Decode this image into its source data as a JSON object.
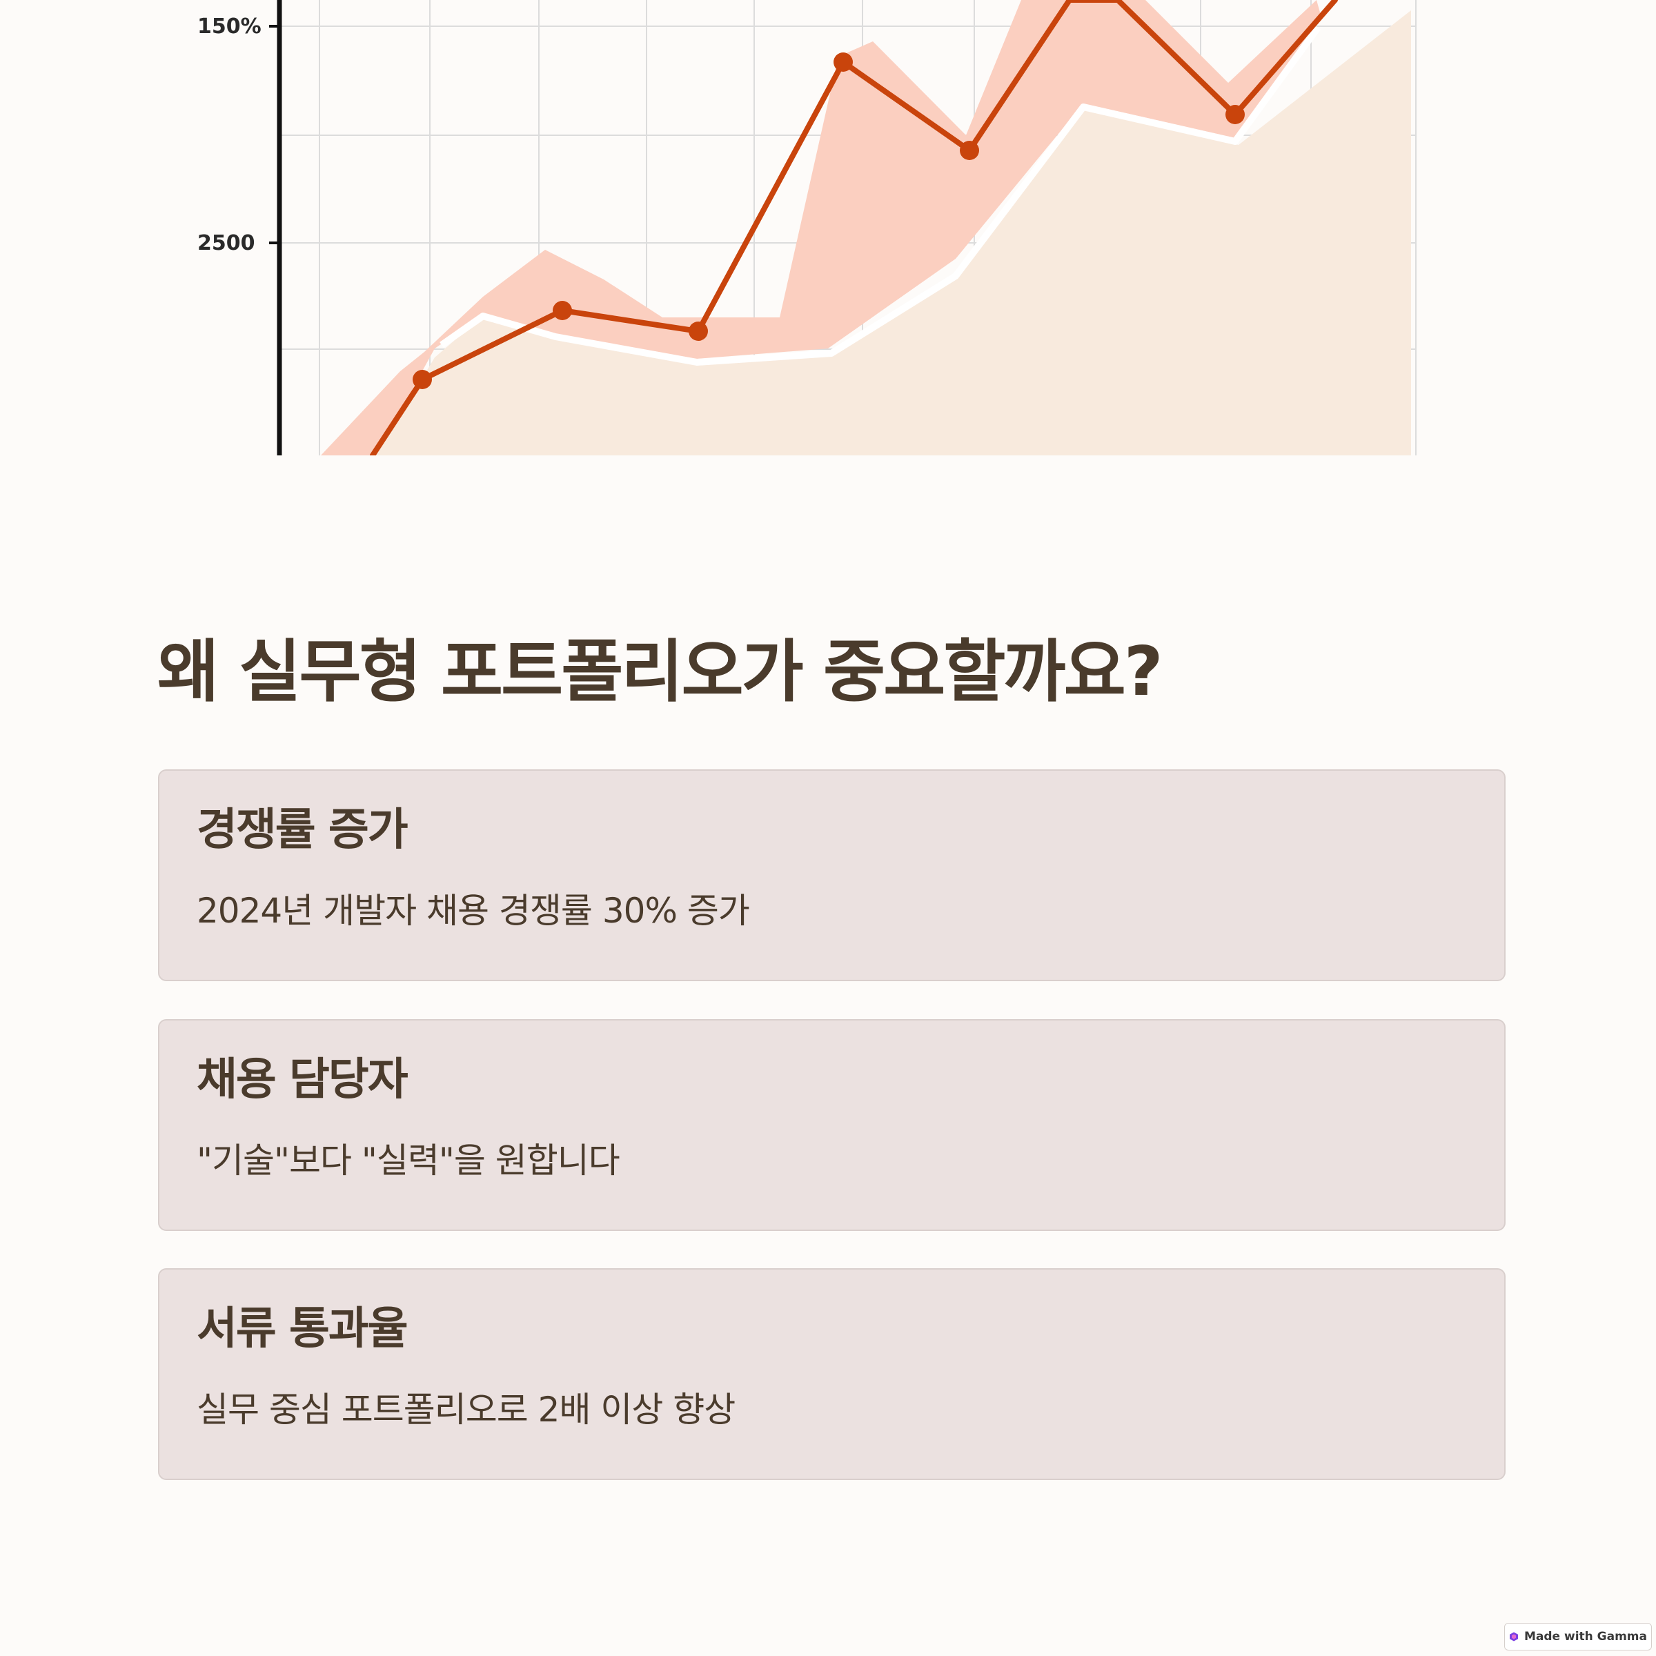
{
  "hero_chart": {
    "y_tick_labels": [
      "150%",
      "2500"
    ],
    "colors": {
      "line": "#c9440c",
      "band": "#fbcfc0",
      "area": "#f8eadd",
      "grid": "#dcdcdc",
      "axis": "#111111"
    }
  },
  "main": {
    "title": "왜 실무형 포트폴리오가 중요할까요?",
    "cards": [
      {
        "title": "경쟁률 증가",
        "text": "2024년 개발자 채용 경쟁률 30% 증가"
      },
      {
        "title": "채용 담당자",
        "text": "\"기술\"보다 \"실력\"을 원합니다"
      },
      {
        "title": "서류 통과율",
        "text": "실무 중심 포트폴리오로 2배 이상 향상"
      }
    ]
  },
  "footer": {
    "badge_label": "Made with Gamma",
    "badge_icon": "gamma-logo-icon",
    "badge_icon_color": "#7b3fe4"
  }
}
